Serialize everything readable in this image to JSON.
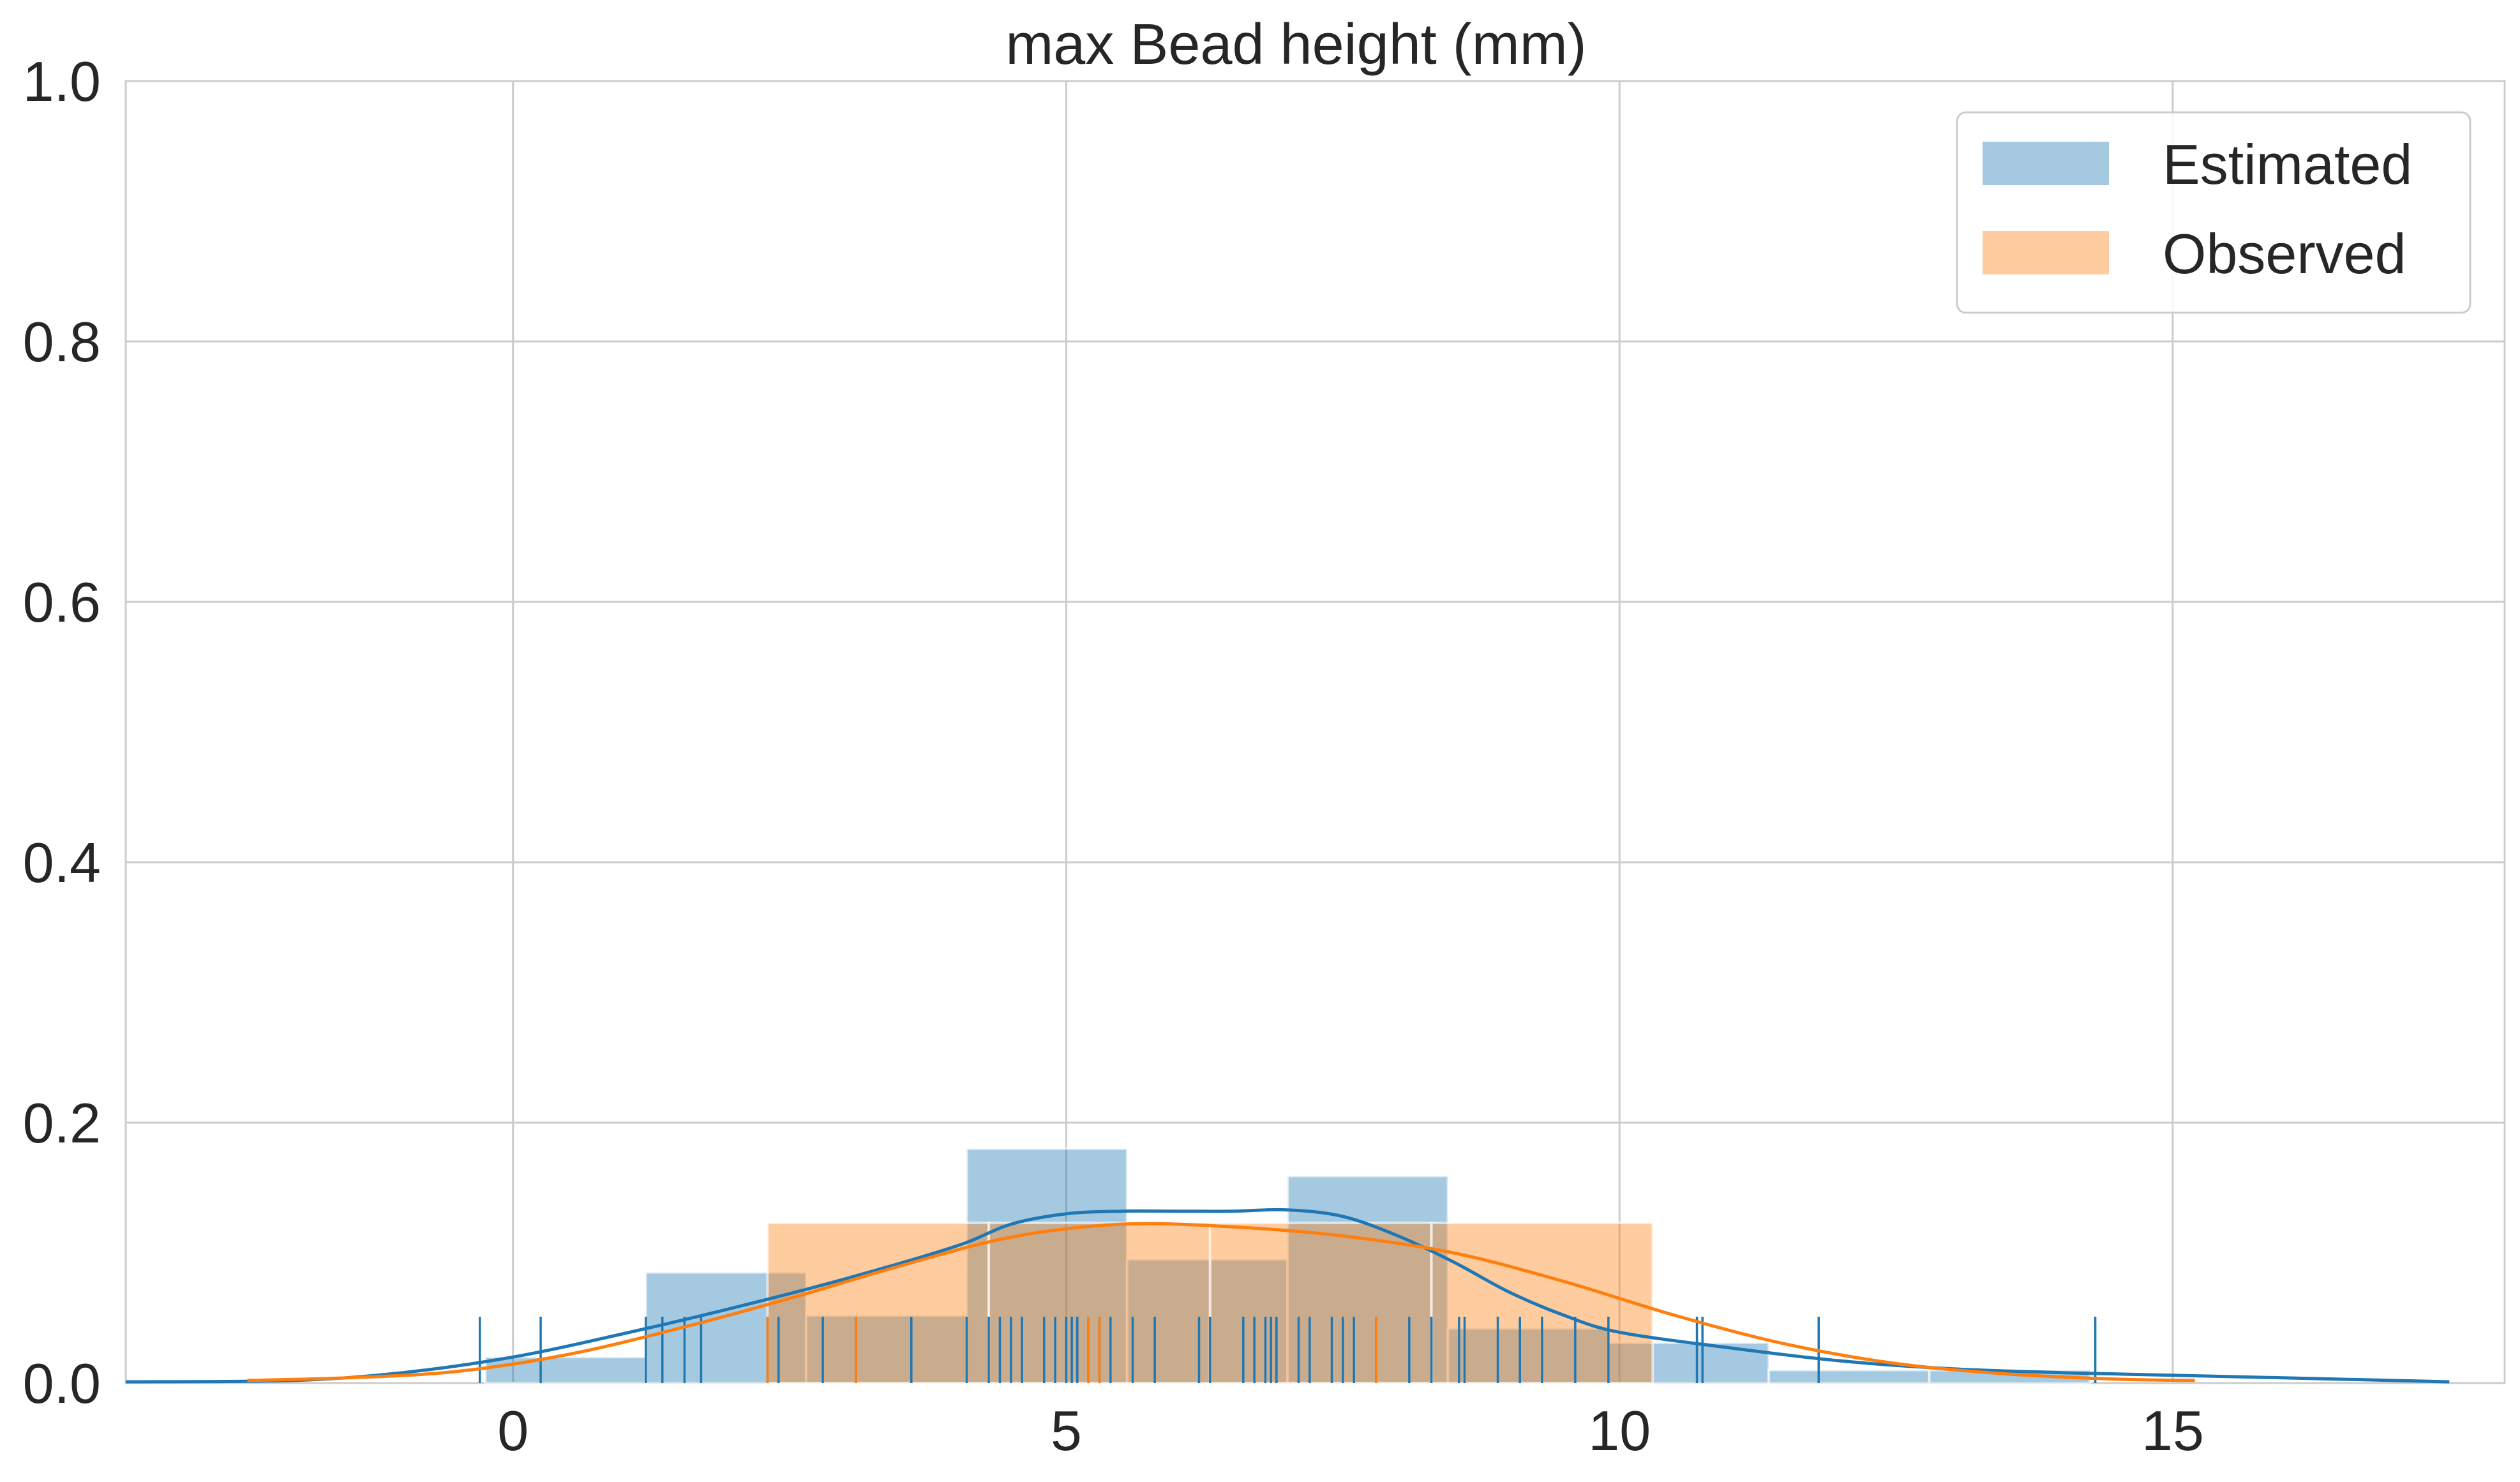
{
  "chart_data": {
    "type": "histogram",
    "title": "max Bead height (mm)",
    "xlabel": "",
    "ylabel": "",
    "xlim": [
      -3.5,
      18
    ],
    "ylim": [
      0,
      1.0
    ],
    "x_ticks": [
      0,
      5,
      10,
      15
    ],
    "x_tick_labels": [
      "0",
      "5",
      "10",
      "15"
    ],
    "y_ticks": [
      0.0,
      0.2,
      0.4,
      0.6,
      0.8,
      1.0
    ],
    "y_tick_labels": [
      "0.0",
      "0.2",
      "0.4",
      "0.6",
      "0.8",
      "1.0"
    ],
    "grid": true,
    "legend_position": "top-right",
    "series": [
      {
        "name": "Estimated",
        "color": "#1f77b4",
        "bins": [
          {
            "x0": -0.25,
            "x1": 1.2,
            "value": 0.02
          },
          {
            "x0": 1.2,
            "x1": 2.65,
            "value": 0.085
          },
          {
            "x0": 2.65,
            "x1": 4.1,
            "value": 0.052
          },
          {
            "x0": 4.1,
            "x1": 5.55,
            "value": 0.18
          },
          {
            "x0": 5.55,
            "x1": 7.0,
            "value": 0.095
          },
          {
            "x0": 7.0,
            "x1": 8.45,
            "value": 0.159
          },
          {
            "x0": 8.45,
            "x1": 9.9,
            "value": 0.042
          },
          {
            "x0": 9.9,
            "x1": 11.35,
            "value": 0.031
          },
          {
            "x0": 11.35,
            "x1": 12.8,
            "value": 0.01
          },
          {
            "x0": 12.8,
            "x1": 14.25,
            "value": 0.01
          }
        ],
        "kde": [
          [
            -3.5,
            0.001
          ],
          [
            -2.0,
            0.002
          ],
          [
            -1.0,
            0.008
          ],
          [
            0.0,
            0.02
          ],
          [
            1.0,
            0.038
          ],
          [
            2.0,
            0.058
          ],
          [
            3.0,
            0.08
          ],
          [
            4.0,
            0.105
          ],
          [
            4.5,
            0.122
          ],
          [
            5.0,
            0.13
          ],
          [
            5.5,
            0.132
          ],
          [
            6.0,
            0.132
          ],
          [
            6.5,
            0.132
          ],
          [
            7.0,
            0.133
          ],
          [
            7.5,
            0.128
          ],
          [
            8.0,
            0.113
          ],
          [
            8.5,
            0.093
          ],
          [
            9.0,
            0.07
          ],
          [
            9.5,
            0.052
          ],
          [
            10.0,
            0.039
          ],
          [
            11.0,
            0.027
          ],
          [
            12.0,
            0.017
          ],
          [
            13.0,
            0.011
          ],
          [
            14.0,
            0.008
          ],
          [
            15.0,
            0.006
          ],
          [
            16.0,
            0.004
          ],
          [
            17.5,
            0.001
          ]
        ],
        "rug": [
          -0.3,
          0.25,
          1.2,
          1.35,
          1.55,
          1.7,
          2.3,
          2.4,
          2.8,
          3.1,
          3.6,
          4.1,
          4.3,
          4.4,
          4.5,
          4.6,
          4.8,
          4.9,
          5.0,
          5.05,
          5.1,
          5.2,
          5.3,
          5.4,
          5.6,
          5.8,
          6.2,
          6.3,
          6.6,
          6.7,
          6.8,
          6.85,
          6.9,
          7.1,
          7.2,
          7.4,
          7.5,
          7.6,
          7.8,
          8.1,
          8.3,
          8.55,
          8.6,
          8.9,
          9.1,
          9.3,
          9.6,
          9.9,
          10.7,
          10.75,
          11.8,
          14.3
        ]
      },
      {
        "name": "Observed",
        "color": "#ff7f0e",
        "bins": [
          {
            "x0": 2.3,
            "x1": 4.3,
            "value": 0.123
          },
          {
            "x0": 4.3,
            "x1": 6.3,
            "value": 0.123
          },
          {
            "x0": 6.3,
            "x1": 8.3,
            "value": 0.123
          },
          {
            "x0": 8.3,
            "x1": 10.3,
            "value": 0.123
          }
        ],
        "kde": [
          [
            -2.4,
            0.002
          ],
          [
            -1.5,
            0.004
          ],
          [
            -0.5,
            0.009
          ],
          [
            0.5,
            0.022
          ],
          [
            1.5,
            0.042
          ],
          [
            2.5,
            0.065
          ],
          [
            3.5,
            0.09
          ],
          [
            4.5,
            0.112
          ],
          [
            5.5,
            0.122
          ],
          [
            6.5,
            0.12
          ],
          [
            7.5,
            0.113
          ],
          [
            8.5,
            0.1
          ],
          [
            9.5,
            0.078
          ],
          [
            10.5,
            0.052
          ],
          [
            11.5,
            0.03
          ],
          [
            12.5,
            0.015
          ],
          [
            13.5,
            0.007
          ],
          [
            14.5,
            0.003
          ],
          [
            15.2,
            0.002
          ]
        ],
        "rug": [
          2.3,
          3.1,
          5.2,
          5.3,
          7.8
        ]
      }
    ],
    "legend": [
      {
        "label": "Estimated",
        "color": "#1f77b4"
      },
      {
        "label": "Observed",
        "color": "#ff7f0e"
      }
    ]
  }
}
